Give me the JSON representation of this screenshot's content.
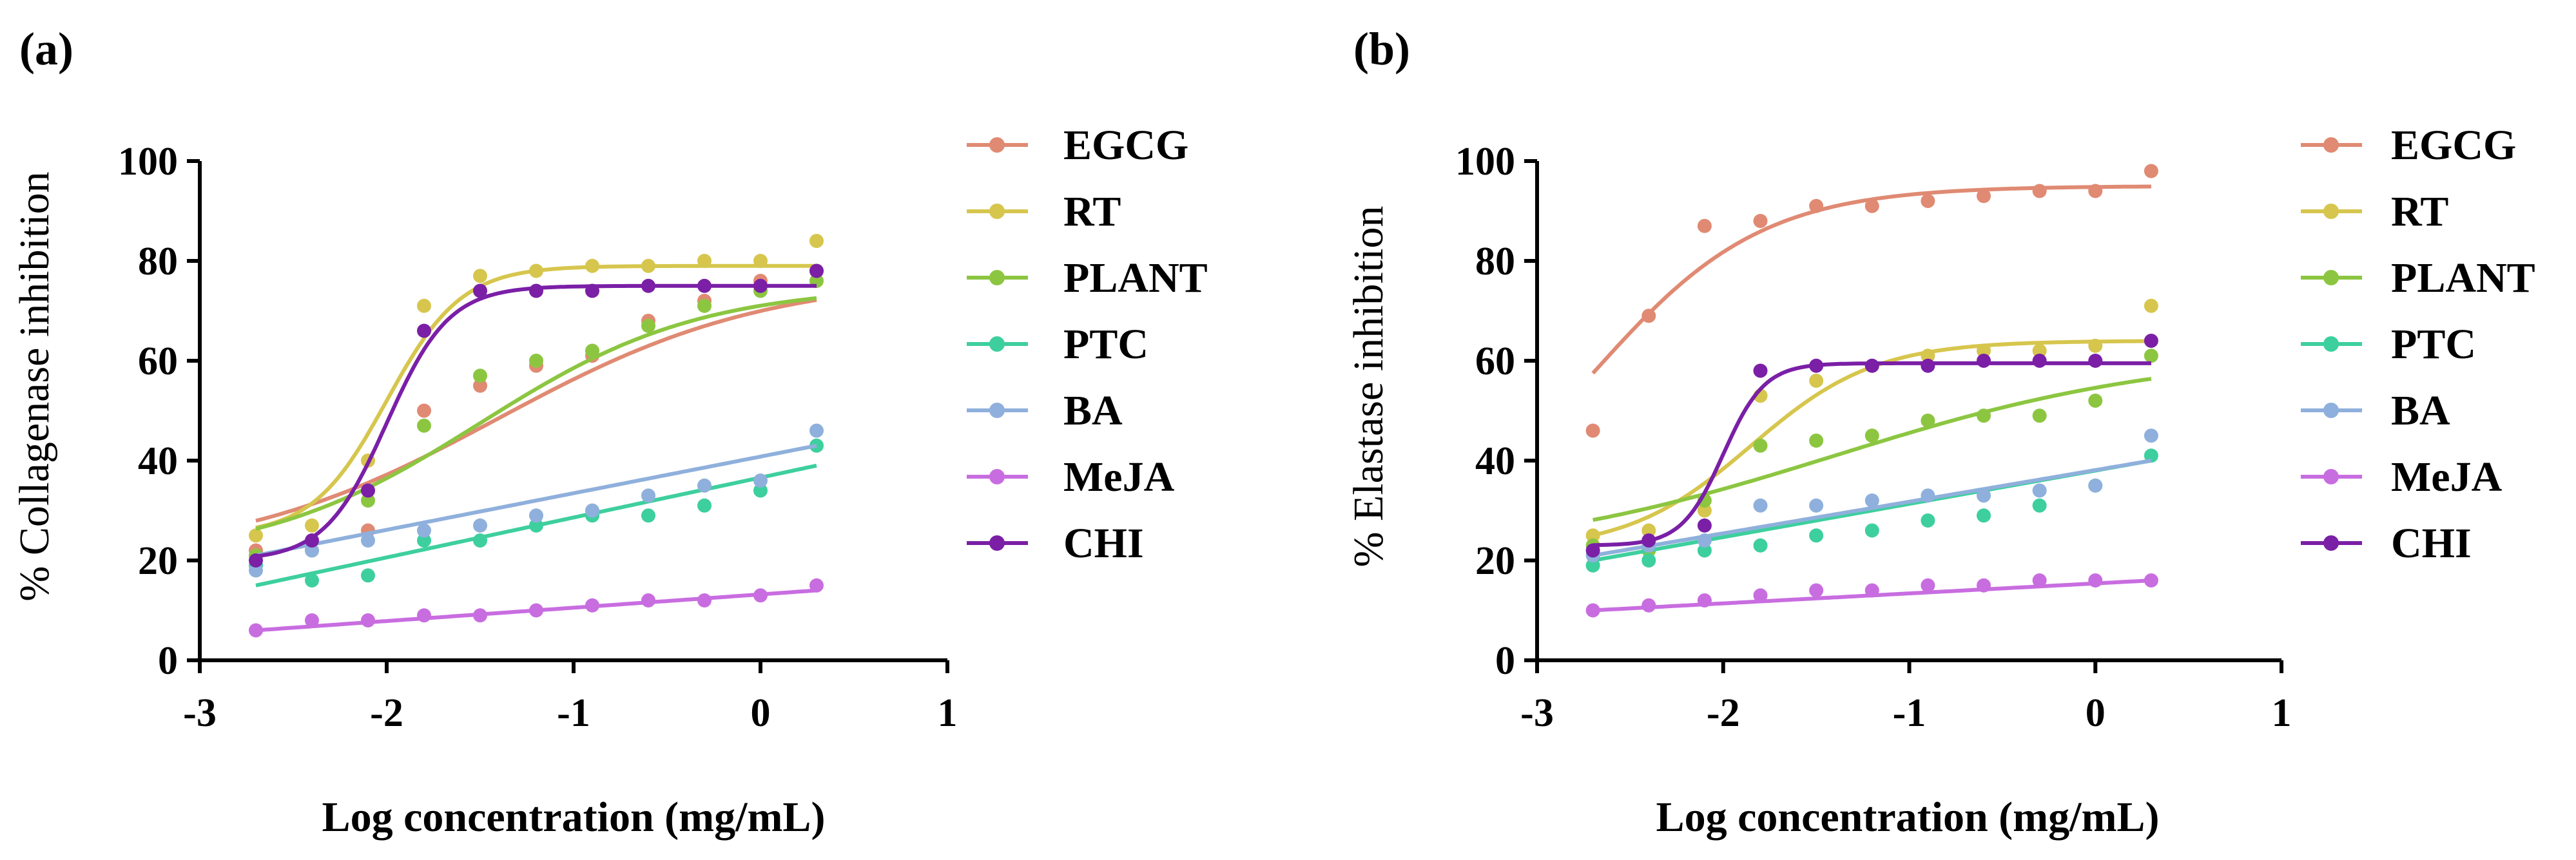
{
  "figure_panels": [
    {
      "label": "(a)"
    },
    {
      "label": "(b)"
    }
  ],
  "series_colors": {
    "EGCG": "#e08a73",
    "RT": "#d6c64d",
    "PLANT": "#8cc641",
    "PTC": "#3ecf9e",
    "BA": "#8fb0dc",
    "MeJA": "#c86de0",
    "CHI": "#7a1fa6"
  },
  "chart_data": [
    {
      "type": "scatter",
      "title": "(a)",
      "xlabel": "Log concentration (mg/mL)",
      "ylabel": "% Collagenase inhibition",
      "xlim": [
        -3,
        1
      ],
      "ylim": [
        0,
        100
      ],
      "xticks": [
        -3,
        -2,
        -1,
        0,
        1
      ],
      "yticks": [
        0,
        20,
        40,
        60,
        80,
        100
      ],
      "xtick_labels": [
        "-3",
        "-2",
        "-1",
        "0",
        "1"
      ],
      "ytick_labels": [
        "0",
        "20",
        "40",
        "60",
        "80",
        "100"
      ],
      "x": [
        -2.7,
        -2.4,
        -2.1,
        -1.8,
        -1.5,
        -1.2,
        -0.9,
        -0.6,
        -0.3,
        0.0,
        0.3
      ],
      "series": [
        {
          "name": "EGCG",
          "values": [
            22,
            24,
            26,
            50,
            55,
            59,
            61,
            68,
            72,
            76,
            78
          ],
          "fit": {
            "kind": "sigmoid",
            "bottom": 20,
            "top": 77,
            "x50": -1.4,
            "slope": 1.4
          }
        },
        {
          "name": "RT",
          "values": [
            25,
            27,
            40,
            71,
            77,
            78,
            79,
            79,
            80,
            80,
            84
          ],
          "fit": {
            "kind": "sigmoid",
            "bottom": 25,
            "top": 79,
            "x50": -2.0,
            "slope": 5
          }
        },
        {
          "name": "PLANT",
          "values": [
            21,
            22,
            32,
            47,
            57,
            60,
            62,
            67,
            71,
            74,
            76
          ],
          "fit": {
            "kind": "sigmoid",
            "bottom": 20,
            "top": 75,
            "x50": -1.5,
            "slope": 1.7
          }
        },
        {
          "name": "PTC",
          "values": [
            19,
            16,
            17,
            24,
            24,
            27,
            29,
            29,
            31,
            34,
            43
          ],
          "fit": {
            "kind": "linear",
            "x0": -2.7,
            "y0": 15,
            "x1": 0.3,
            "y1": 39
          }
        },
        {
          "name": "BA",
          "values": [
            18,
            22,
            24,
            26,
            27,
            29,
            30,
            33,
            35,
            36,
            46
          ],
          "fit": {
            "kind": "linear",
            "x0": -2.7,
            "y0": 21,
            "x1": 0.3,
            "y1": 43
          }
        },
        {
          "name": "MeJA",
          "values": [
            6,
            8,
            8,
            9,
            9,
            10,
            11,
            12,
            12,
            13,
            15
          ],
          "fit": {
            "kind": "linear",
            "x0": -2.7,
            "y0": 6,
            "x1": 0.3,
            "y1": 14
          }
        },
        {
          "name": "CHI",
          "values": [
            20,
            24,
            34,
            66,
            74,
            74,
            74,
            75,
            75,
            75,
            78
          ],
          "fit": {
            "kind": "sigmoid",
            "bottom": 20,
            "top": 75,
            "x50": -2.0,
            "slope": 6
          }
        }
      ],
      "legend": [
        "EGCG",
        "RT",
        "PLANT",
        "PTC",
        "BA",
        "MeJA",
        "CHI"
      ],
      "legend_position": "right"
    },
    {
      "type": "scatter",
      "title": "(b)",
      "xlabel": "Log concentration (mg/mL)",
      "ylabel": "% Elastase inhibition",
      "xlim": [
        -3,
        1
      ],
      "ylim": [
        0,
        100
      ],
      "xticks": [
        -3,
        -2,
        -1,
        0,
        1
      ],
      "yticks": [
        0,
        20,
        40,
        60,
        80,
        100
      ],
      "xtick_labels": [
        "-3",
        "-2",
        "-1",
        "0",
        "1"
      ],
      "ytick_labels": [
        "0",
        "20",
        "40",
        "60",
        "80",
        "100"
      ],
      "x": [
        -2.7,
        -2.4,
        -2.1,
        -1.8,
        -1.5,
        -1.2,
        -0.9,
        -0.6,
        -0.3,
        0.0,
        0.3
      ],
      "series": [
        {
          "name": "EGCG",
          "values": [
            46,
            69,
            87,
            88,
            91,
            91,
            92,
            93,
            94,
            94,
            98
          ],
          "fit": {
            "kind": "sigmoid",
            "bottom": 20,
            "top": 95,
            "x50": -2.7,
            "slope": 2.2
          }
        },
        {
          "name": "RT",
          "values": [
            25,
            26,
            30,
            53,
            56,
            59,
            61,
            62,
            62,
            63,
            71
          ],
          "fit": {
            "kind": "sigmoid",
            "bottom": 22,
            "top": 64,
            "x50": -1.85,
            "slope": 3
          }
        },
        {
          "name": "PLANT",
          "values": [
            23,
            22,
            32,
            43,
            44,
            45,
            48,
            49,
            49,
            52,
            61
          ],
          "fit": {
            "kind": "sigmoid",
            "bottom": 20,
            "top": 62,
            "x50": -1.4,
            "slope": 1.1
          }
        },
        {
          "name": "PTC",
          "values": [
            19,
            20,
            22,
            23,
            25,
            26,
            28,
            29,
            31,
            35,
            41
          ],
          "fit": {
            "kind": "linear",
            "x0": -2.7,
            "y0": 20,
            "x1": 0.3,
            "y1": 40
          }
        },
        {
          "name": "BA",
          "values": [
            21,
            23,
            24,
            31,
            31,
            32,
            33,
            33,
            34,
            35,
            45
          ],
          "fit": {
            "kind": "linear",
            "x0": -2.7,
            "y0": 21,
            "x1": 0.3,
            "y1": 40
          }
        },
        {
          "name": "MeJA",
          "values": [
            10,
            11,
            12,
            13,
            14,
            14,
            15,
            15,
            16,
            16,
            16
          ],
          "fit": {
            "kind": "linear",
            "x0": -2.7,
            "y0": 10,
            "x1": 0.3,
            "y1": 16
          }
        },
        {
          "name": "CHI",
          "values": [
            22,
            24,
            27,
            58,
            59,
            59,
            59,
            60,
            60,
            60,
            64
          ],
          "fit": {
            "kind": "sigmoid",
            "bottom": 23,
            "top": 59.5,
            "x50": -2.0,
            "slope": 9
          }
        }
      ],
      "legend": [
        "EGCG",
        "RT",
        "PLANT",
        "PTC",
        "BA",
        "MeJA",
        "CHI"
      ],
      "legend_position": "right"
    }
  ]
}
